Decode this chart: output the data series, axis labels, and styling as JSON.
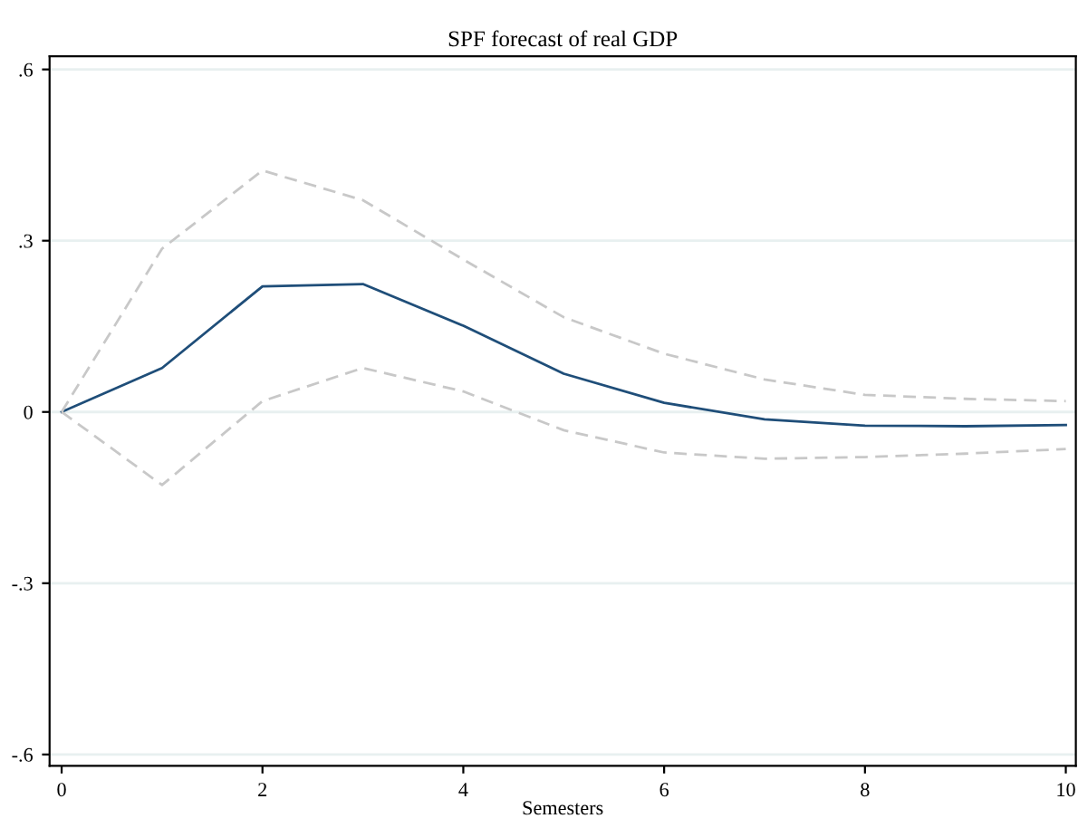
{
  "chart_data": {
    "type": "line",
    "title": "SPF forecast of real GDP",
    "xlabel": "Semesters",
    "x": [
      0,
      1,
      2,
      3,
      4,
      5,
      6,
      7,
      8,
      9,
      10
    ],
    "series": [
      {
        "color": "#1f4e79",
        "line_style": "solid",
        "values": [
          0,
          0.077,
          0.22,
          0.224,
          0.151,
          0.067,
          0.016,
          -0.013,
          -0.024,
          -0.025,
          -0.023
        ]
      },
      {
        "color": "#c8c8c8",
        "line_style": "dashed",
        "values": [
          0,
          0.286,
          0.423,
          0.371,
          0.267,
          0.166,
          0.102,
          0.057,
          0.03,
          0.023,
          0.019
        ]
      },
      {
        "color": "#c8c8c8",
        "line_style": "dashed",
        "values": [
          0,
          -0.128,
          0.019,
          0.077,
          0.036,
          -0.032,
          -0.071,
          -0.082,
          -0.079,
          -0.073,
          -0.065
        ]
      }
    ],
    "xlim": [
      -0.12,
      10.1
    ],
    "xticks": [
      0,
      2,
      4,
      6,
      8,
      10
    ],
    "ylim": [
      -0.62,
      0.623
    ],
    "yticks": [
      {
        "value": -0.6,
        "label": "-.6"
      },
      {
        "value": -0.3,
        "label": "-.3"
      },
      0,
      {
        "value": 0.3,
        "label": ".3"
      },
      {
        "value": 0.6,
        "label": ".6"
      }
    ],
    "grid": "y",
    "marker": "none"
  }
}
